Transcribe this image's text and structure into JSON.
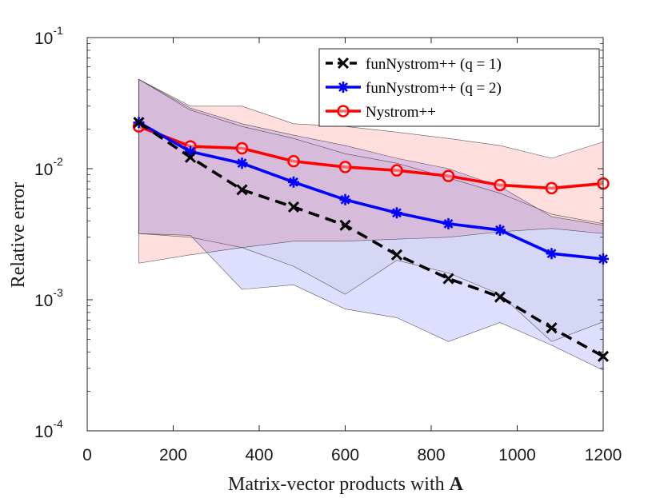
{
  "chart_data": {
    "type": "line",
    "title": "",
    "xlabel": "Matrix-vector products with",
    "xlabel_bold": "A",
    "ylabel": "Relative error",
    "xlim": [
      0,
      1200
    ],
    "ylim": [
      0.0001,
      0.1
    ],
    "yscale": "log",
    "x_ticks": [
      0,
      200,
      400,
      600,
      800,
      1000,
      1200
    ],
    "y_ticks": [
      {
        "value": 0.0001,
        "base": "10",
        "exp": "-4"
      },
      {
        "value": 0.001,
        "base": "10",
        "exp": "-3"
      },
      {
        "value": 0.01,
        "base": "10",
        "exp": "-2"
      },
      {
        "value": 0.1,
        "base": "10",
        "exp": "-1"
      }
    ],
    "x": [
      120,
      240,
      360,
      480,
      600,
      720,
      840,
      960,
      1080,
      1200
    ],
    "series": [
      {
        "name": "funNystrom++ (q = 1)",
        "color": "#000000",
        "style": "dashed",
        "marker": "x",
        "values": [
          0.0225,
          0.0122,
          0.0069,
          0.0051,
          0.0037,
          0.0022,
          0.00145,
          0.00105,
          0.00061,
          0.00037
        ]
      },
      {
        "name": "funNystrom++ (q = 2)",
        "color": "#0000ff",
        "style": "solid",
        "marker": "asterisk",
        "values": [
          0.0225,
          0.0135,
          0.011,
          0.0079,
          0.0058,
          0.0046,
          0.0038,
          0.0034,
          0.00225,
          0.00205
        ]
      },
      {
        "name": "Nystrom++",
        "color": "#ff0000",
        "style": "solid",
        "marker": "circle",
        "values": [
          0.021,
          0.0148,
          0.0143,
          0.0114,
          0.0103,
          0.0097,
          0.0088,
          0.0075,
          0.0071,
          0.0077
        ]
      }
    ],
    "bands": [
      {
        "name": "Nystrom++ range",
        "color": "#ff0000",
        "opacity": 0.13,
        "upper": [
          0.048,
          0.03,
          0.03,
          0.022,
          0.021,
          0.019,
          0.017,
          0.015,
          0.012,
          0.016
        ],
        "lower": [
          0.0019,
          0.0022,
          0.0025,
          0.0028,
          0.0028,
          0.0029,
          0.003,
          0.0033,
          0.0035,
          0.0032
        ]
      },
      {
        "name": "funNystrom++ (q = 1) range",
        "color": "#0000ff",
        "opacity": 0.13,
        "upper": [
          0.048,
          0.029,
          0.022,
          0.018,
          0.015,
          0.012,
          0.01,
          0.0073,
          0.0043,
          0.0037
        ],
        "lower": [
          0.0032,
          0.0031,
          0.0012,
          0.0013,
          0.00085,
          0.00073,
          0.00048,
          0.00067,
          0.00045,
          0.00029
        ]
      },
      {
        "name": "funNystrom++ (q = 2) range",
        "color": "#808080",
        "opacity": 0.08,
        "upper": [
          0.048,
          0.028,
          0.021,
          0.017,
          0.013,
          0.011,
          0.0085,
          0.0065,
          0.0045,
          0.0038
        ],
        "lower": [
          0.0032,
          0.003,
          0.0025,
          0.0018,
          0.0011,
          0.002,
          0.0016,
          0.0011,
          0.00048,
          0.00068
        ]
      }
    ],
    "legend_position": "top-right",
    "grid": false
  }
}
